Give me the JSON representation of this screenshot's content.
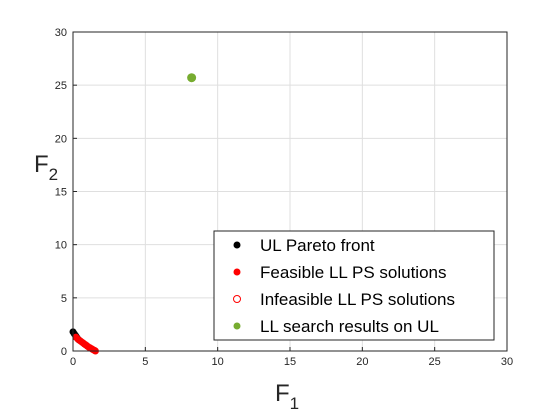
{
  "chart_data": {
    "type": "scatter",
    "xlabel": {
      "main": "F",
      "sub": "1"
    },
    "ylabel": {
      "main": "F",
      "sub": "2"
    },
    "xlim": [
      0,
      30
    ],
    "ylim": [
      0,
      30
    ],
    "xticks": [
      "0",
      "5",
      "10",
      "15",
      "20",
      "25",
      "30"
    ],
    "yticks": [
      "0",
      "5",
      "10",
      "15",
      "20",
      "25",
      "30"
    ],
    "grid": true,
    "legend_position": "bottom-right",
    "series": [
      {
        "name": "UL Pareto front",
        "color": "#000000",
        "marker": "filled-dot",
        "points": [
          [
            0.0,
            1.8
          ],
          [
            0.1,
            1.6
          ],
          [
            0.2,
            1.4
          ],
          [
            0.3,
            1.2
          ],
          [
            0.4,
            1.05
          ]
        ]
      },
      {
        "name": "Feasible LL PS solutions",
        "color": "#ff0000",
        "marker": "filled-dot",
        "points": [
          [
            0.2,
            1.3
          ],
          [
            0.35,
            1.1
          ],
          [
            0.5,
            0.95
          ],
          [
            0.6,
            0.85
          ],
          [
            0.7,
            0.75
          ],
          [
            0.8,
            0.65
          ],
          [
            0.9,
            0.55
          ],
          [
            1.0,
            0.45
          ],
          [
            1.1,
            0.35
          ],
          [
            1.2,
            0.28
          ],
          [
            1.3,
            0.2
          ],
          [
            1.4,
            0.12
          ],
          [
            1.5,
            0.05
          ],
          [
            1.55,
            0.0
          ]
        ]
      },
      {
        "name": "Infeasible LL PS solutions",
        "color": "#ff0000",
        "marker": "open-circle",
        "points": []
      },
      {
        "name": "LL search results on UL",
        "color": "#77ac30",
        "marker": "filled-dot",
        "points": [
          [
            8.2,
            25.7
          ]
        ]
      }
    ]
  }
}
